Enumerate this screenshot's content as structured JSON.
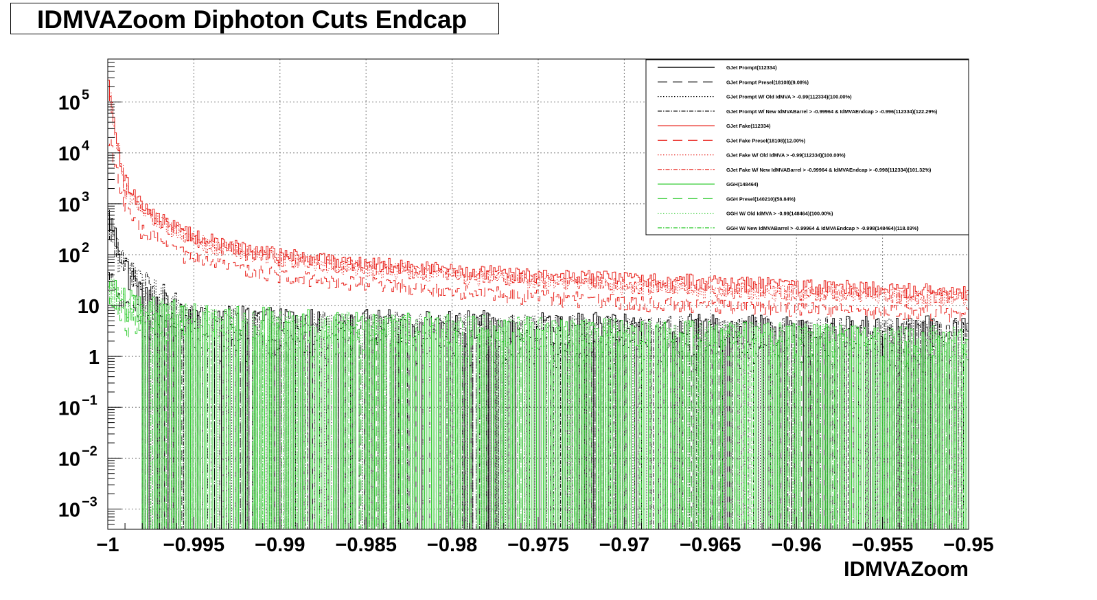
{
  "chart_data": {
    "type": "histogram",
    "title": "IDMVAZoom Diphoton Cuts Endcap",
    "xlabel": "IDMVAZoom",
    "ylabel": "",
    "xlim": [
      -1,
      -0.95
    ],
    "ylim": [
      0.0004,
      700000
    ],
    "yscale": "log",
    "grid": true,
    "legend_position": "top-right",
    "x_ticks": [
      {
        "value": -1,
        "label": "−1"
      },
      {
        "value": -0.995,
        "label": "−0.995"
      },
      {
        "value": -0.99,
        "label": "−0.99"
      },
      {
        "value": -0.985,
        "label": "−0.985"
      },
      {
        "value": -0.98,
        "label": "−0.98"
      },
      {
        "value": -0.975,
        "label": "−0.975"
      },
      {
        "value": -0.97,
        "label": "−0.97"
      },
      {
        "value": -0.965,
        "label": "−0.965"
      },
      {
        "value": -0.96,
        "label": "−0.96"
      },
      {
        "value": -0.955,
        "label": "−0.955"
      },
      {
        "value": -0.95,
        "label": "−0.95"
      }
    ],
    "y_ticks": [
      {
        "value": 0.001,
        "base": "10",
        "exp": "−3"
      },
      {
        "value": 0.01,
        "base": "10",
        "exp": "−2"
      },
      {
        "value": 0.1,
        "base": "10",
        "exp": "−1"
      },
      {
        "value": 1,
        "base": "1",
        "exp": ""
      },
      {
        "value": 10,
        "base": "10",
        "exp": ""
      },
      {
        "value": 100,
        "base": "10",
        "exp": "2"
      },
      {
        "value": 1000,
        "base": "10",
        "exp": "3"
      },
      {
        "value": 10000,
        "base": "10",
        "exp": "4"
      },
      {
        "value": 100000,
        "base": "10",
        "exp": "5"
      }
    ],
    "series": [
      {
        "name": "GJet Prompt(112334)",
        "color": "#000000",
        "dash": "solid",
        "points": [
          [
            -0.9999,
            500
          ],
          [
            -0.999,
            60
          ],
          [
            -0.998,
            15
          ],
          [
            -0.995,
            6
          ],
          [
            -0.99,
            5
          ],
          [
            -0.98,
            4.5
          ],
          [
            -0.97,
            4
          ],
          [
            -0.96,
            3.5
          ],
          [
            -0.95,
            3.5
          ]
        ]
      },
      {
        "name": "GJet Prompt Presel(18108)(9.08%)",
        "color": "#000000",
        "dash": "longdash",
        "points": [
          [
            -0.9999,
            30
          ],
          [
            -0.999,
            8
          ],
          [
            -0.995,
            2
          ],
          [
            -0.99,
            1.5
          ],
          [
            -0.97,
            1.2
          ],
          [
            -0.95,
            1
          ]
        ]
      },
      {
        "name": "GJet Prompt W/ Old IdMVA > -0.99(112334)(100.00%)",
        "color": "#000000",
        "dash": "dotted",
        "points": [
          [
            -0.9999,
            400
          ],
          [
            -0.999,
            50
          ],
          [
            -0.995,
            5
          ],
          [
            -0.99,
            4
          ],
          [
            -0.97,
            3.5
          ],
          [
            -0.95,
            3
          ]
        ]
      },
      {
        "name": "GJet Prompt W/ New IdMVABarrel > -0.99964 & IdMVAEndcap > -0.996(112334)(122.29%)",
        "color": "#000000",
        "dash": "dashdot",
        "points": [
          [
            -0.9999,
            450
          ],
          [
            -0.999,
            55
          ],
          [
            -0.995,
            5.5
          ],
          [
            -0.99,
            4.5
          ],
          [
            -0.97,
            3.5
          ],
          [
            -0.95,
            3.2
          ]
        ]
      },
      {
        "name": "GJet Fake(112334)",
        "color": "#e8201a",
        "dash": "solid",
        "points": [
          [
            -0.9999,
            200000
          ],
          [
            -0.9995,
            15000
          ],
          [
            -0.999,
            3000
          ],
          [
            -0.998,
            1000
          ],
          [
            -0.997,
            500
          ],
          [
            -0.995,
            250
          ],
          [
            -0.993,
            150
          ],
          [
            -0.99,
            100
          ],
          [
            -0.985,
            70
          ],
          [
            -0.98,
            50
          ],
          [
            -0.975,
            40
          ],
          [
            -0.97,
            35
          ],
          [
            -0.965,
            30
          ],
          [
            -0.96,
            25
          ],
          [
            -0.955,
            22
          ],
          [
            -0.95,
            20
          ]
        ]
      },
      {
        "name": "GJet Fake Presel(18108)(12.00%)",
        "color": "#e8201a",
        "dash": "longdash",
        "points": [
          [
            -0.9999,
            20000
          ],
          [
            -0.999,
            800
          ],
          [
            -0.998,
            300
          ],
          [
            -0.995,
            80
          ],
          [
            -0.99,
            40
          ],
          [
            -0.98,
            20
          ],
          [
            -0.97,
            12
          ],
          [
            -0.96,
            9
          ],
          [
            -0.95,
            7
          ]
        ]
      },
      {
        "name": "GJet Fake W/ Old IdMVA > -0.99(112334)(100.00%)",
        "color": "#e8201a",
        "dash": "dotted",
        "points": [
          [
            -0.9999,
            150000
          ],
          [
            -0.999,
            2000
          ],
          [
            -0.998,
            700
          ],
          [
            -0.995,
            180
          ],
          [
            -0.99,
            80
          ],
          [
            -0.98,
            40
          ],
          [
            -0.97,
            25
          ],
          [
            -0.96,
            18
          ],
          [
            -0.95,
            14
          ]
        ]
      },
      {
        "name": "GJet Fake W/ New IdMVABarrel > -0.99964 & IdMVAEndcap > -0.998(112334)(101.32%)",
        "color": "#e8201a",
        "dash": "dashdot",
        "points": [
          [
            -0.9999,
            160000
          ],
          [
            -0.999,
            2200
          ],
          [
            -0.998,
            750
          ],
          [
            -0.995,
            190
          ],
          [
            -0.99,
            85
          ],
          [
            -0.98,
            42
          ],
          [
            -0.97,
            26
          ],
          [
            -0.96,
            19
          ],
          [
            -0.95,
            15
          ]
        ]
      },
      {
        "name": "GGH(148464)",
        "color": "#33cc33",
        "dash": "solid",
        "points": [
          [
            -0.9999,
            30
          ],
          [
            -0.999,
            12
          ],
          [
            -0.995,
            6
          ],
          [
            -0.99,
            5
          ],
          [
            -0.98,
            4
          ],
          [
            -0.97,
            3
          ],
          [
            -0.96,
            2.5
          ],
          [
            -0.95,
            2
          ]
        ]
      },
      {
        "name": "GGH Presel(140210)(58.84%)",
        "color": "#33cc33",
        "dash": "longdash",
        "points": [
          [
            -0.9999,
            10
          ],
          [
            -0.999,
            5
          ],
          [
            -0.995,
            3
          ],
          [
            -0.99,
            2.5
          ],
          [
            -0.97,
            2
          ],
          [
            -0.95,
            1.5
          ]
        ]
      },
      {
        "name": "GGH W/ Old IdMVA > -0.99(148464)(100.00%)",
        "color": "#33cc33",
        "dash": "dotted",
        "points": [
          [
            -0.9999,
            25
          ],
          [
            -0.999,
            10
          ],
          [
            -0.995,
            5
          ],
          [
            -0.99,
            4
          ],
          [
            -0.97,
            3
          ],
          [
            -0.95,
            2
          ]
        ]
      },
      {
        "name": "GGH W/ New IdMVABarrel > -0.99964 & IdMVAEndcap > -0.998(148464)(118.03%)",
        "color": "#33cc33",
        "dash": "dashdot",
        "points": [
          [
            -0.9999,
            28
          ],
          [
            -0.999,
            11
          ],
          [
            -0.995,
            5.5
          ],
          [
            -0.99,
            4.5
          ],
          [
            -0.97,
            3
          ],
          [
            -0.95,
            2.2
          ]
        ]
      }
    ]
  }
}
